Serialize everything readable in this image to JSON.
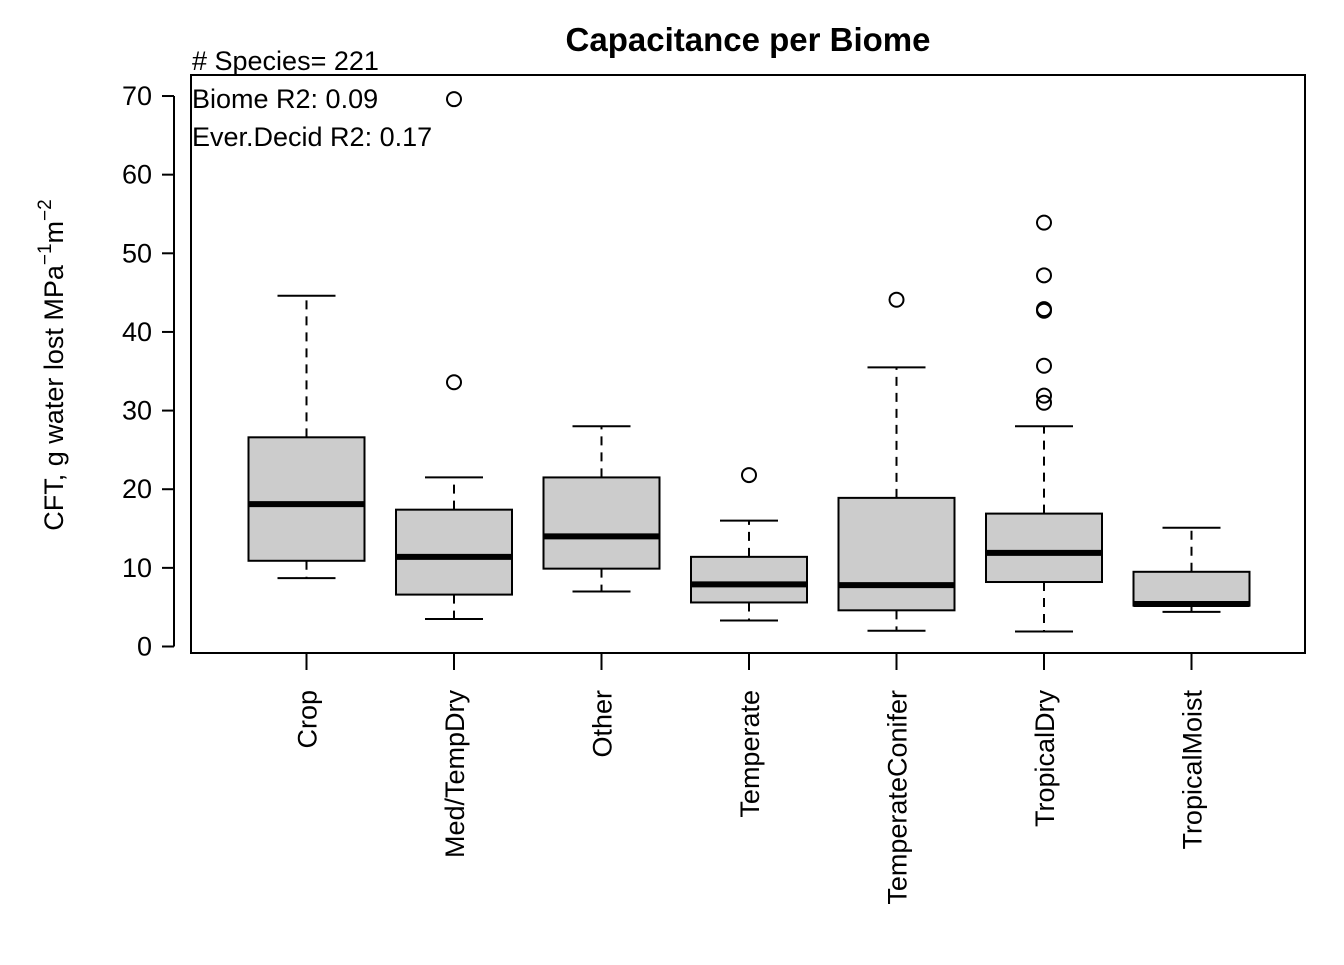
{
  "chart_data": {
    "type": "box",
    "title": "Capacitance per Biome",
    "ylabel": {
      "base": "CFT, g water lost MPa",
      "exp1": "−1",
      "unit2": "m",
      "exp2": "−2"
    },
    "xlabel": "",
    "ylim": [
      0,
      73
    ],
    "y_ticks": [
      0,
      10,
      20,
      30,
      40,
      50,
      60,
      70
    ],
    "y_tick_labels": [
      "0",
      "10",
      "20",
      "30",
      "40",
      "50",
      "60",
      "70"
    ],
    "grid": false,
    "legend": "none",
    "box_fill": "#cccccc",
    "line_color": "#000000",
    "annotations": [
      "# Species= 221",
      "Biome R2: 0.09",
      "Ever.Decid R2: 0.17"
    ],
    "categories": [
      "Crop",
      "Med/TempDry",
      "Other",
      "Temperate",
      "TemperateConifer",
      "TropicalDry",
      "TropicalMoist"
    ],
    "boxes": [
      {
        "name": "Crop",
        "whisker_low": 8.7,
        "q1": 10.9,
        "median": 18.1,
        "q3": 26.6,
        "whisker_high": 44.6,
        "outliers": []
      },
      {
        "name": "Med/TempDry",
        "whisker_low": 3.5,
        "q1": 6.6,
        "median": 11.4,
        "q3": 17.4,
        "whisker_high": 21.5,
        "outliers": [
          33.6,
          69.6
        ]
      },
      {
        "name": "Other",
        "whisker_low": 7.0,
        "q1": 9.9,
        "median": 14.0,
        "q3": 21.5,
        "whisker_high": 28.0,
        "outliers": []
      },
      {
        "name": "Temperate",
        "whisker_low": 3.3,
        "q1": 5.6,
        "median": 7.9,
        "q3": 11.4,
        "whisker_high": 16.0,
        "outliers": [
          21.8
        ]
      },
      {
        "name": "TemperateConifer",
        "whisker_low": 2.0,
        "q1": 4.6,
        "median": 7.8,
        "q3": 18.9,
        "whisker_high": 35.5,
        "outliers": [
          44.1
        ]
      },
      {
        "name": "TropicalDry",
        "whisker_low": 1.9,
        "q1": 8.2,
        "median": 11.9,
        "q3": 16.9,
        "whisker_high": 28.0,
        "outliers": [
          31.0,
          31.9,
          35.7,
          42.7,
          42.9,
          47.2,
          53.9
        ]
      },
      {
        "name": "TropicalMoist",
        "whisker_low": 4.4,
        "q1": 5.2,
        "median": 5.4,
        "q3": 9.5,
        "whisker_high": 15.1,
        "outliers": []
      }
    ]
  }
}
